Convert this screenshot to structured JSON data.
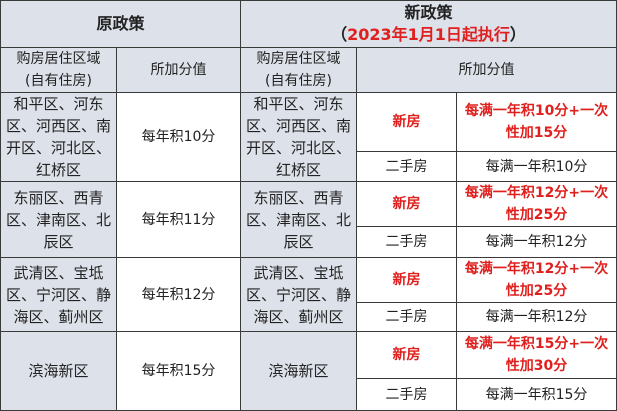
{
  "header": {
    "old_policy": "原政策",
    "new_policy": "新政策",
    "new_policy_note_open": "（",
    "new_policy_note": "2023年1月1日起执行",
    "new_policy_note_close": "）"
  },
  "subheader": {
    "region_line1": "购房居住区域",
    "region_line2": "(自有住房)",
    "points": "所加分值"
  },
  "colors": {
    "accent_red": "#e0201e",
    "header_bg": "#dde1ea"
  },
  "rows": [
    {
      "region": "和平区、河东区、河西区、南开区、河北区、红桥区",
      "old": "每年积10分",
      "new_label": "新房",
      "new_value": "每满一年积10分+一次性加15分",
      "used_label": "二手房",
      "used_value": "每满一年积10分"
    },
    {
      "region": "东丽区、西青区、津南区、北辰区",
      "old": "每年积11分",
      "new_label": "新房",
      "new_value": "每满一年积12分+一次性加25分",
      "used_label": "二手房",
      "used_value": "每满一年积12分"
    },
    {
      "region": "武清区、宝坻区、宁河区、静海区、蓟州区",
      "old": "每年积12分",
      "new_label": "新房",
      "new_value": "每满一年积12分+一次性加25分",
      "used_label": "二手房",
      "used_value": "每满一年积12分"
    },
    {
      "region": "滨海新区",
      "old": "每年积15分",
      "new_label": "新房",
      "new_value": "每满一年积15分+一次性加30分",
      "used_label": "二手房",
      "used_value": "每满一年积15分"
    }
  ]
}
